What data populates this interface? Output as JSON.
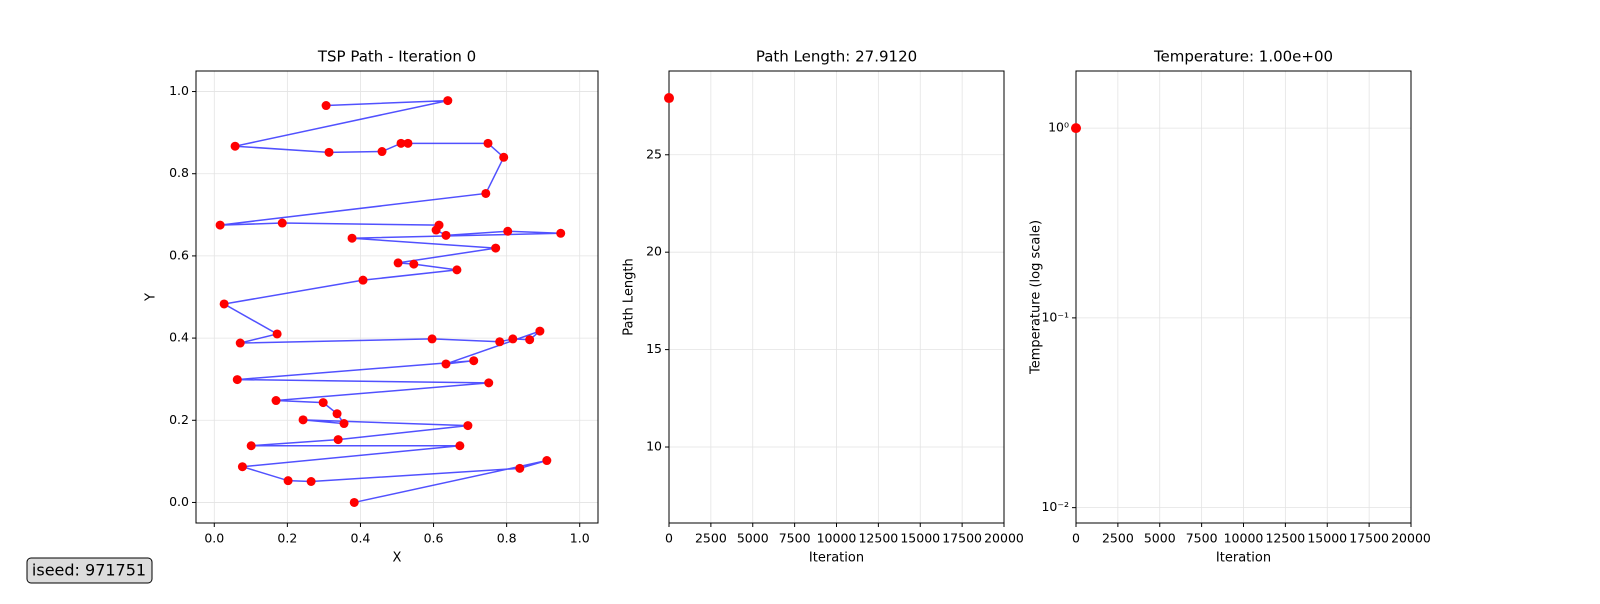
{
  "chart_data": [
    {
      "type": "scatter",
      "title": "TSP Path - Iteration 0",
      "xlabel": "X",
      "ylabel": "Y",
      "x": [
        0.306,
        0.639,
        0.057,
        0.314,
        0.459,
        0.511,
        0.53,
        0.749,
        0.792,
        0.743,
        0.016,
        0.186,
        0.615,
        0.607,
        0.634,
        0.803,
        0.948,
        0.377,
        0.77,
        0.503,
        0.546,
        0.664,
        0.407,
        0.027,
        0.172,
        0.071,
        0.596,
        0.781,
        0.817,
        0.863,
        0.891,
        0.634,
        0.71,
        0.063,
        0.751,
        0.169,
        0.298,
        0.336,
        0.355,
        0.243,
        0.694,
        0.339,
        0.101,
        0.672,
        0.077,
        0.202,
        0.265,
        0.836,
        0.91,
        0.383
      ],
      "y": [
        0.966,
        0.978,
        0.867,
        0.852,
        0.854,
        0.874,
        0.874,
        0.874,
        0.84,
        0.752,
        0.675,
        0.68,
        0.675,
        0.663,
        0.65,
        0.66,
        0.655,
        0.643,
        0.619,
        0.583,
        0.58,
        0.566,
        0.541,
        0.483,
        0.41,
        0.388,
        0.398,
        0.391,
        0.398,
        0.396,
        0.417,
        0.337,
        0.345,
        0.299,
        0.291,
        0.248,
        0.243,
        0.216,
        0.192,
        0.201,
        0.187,
        0.153,
        0.138,
        0.138,
        0.087,
        0.053,
        0.051,
        0.083,
        0.102,
        0.0
      ],
      "line_color": "#3333ff",
      "marker_color": "#ff0000",
      "xlim": [
        -0.05,
        1.05
      ],
      "ylim": [
        -0.05,
        1.05
      ],
      "xticks": [
        {
          "value": 0,
          "label": "0.0"
        },
        0.2,
        0.4,
        0.6,
        0.8,
        {
          "value": 1,
          "label": "1.0"
        }
      ],
      "yticks": [
        {
          "value": 0,
          "label": "0.0"
        },
        0.2,
        0.4,
        0.6,
        0.8,
        {
          "value": 1,
          "label": "1.0"
        }
      ],
      "grid": true
    },
    {
      "type": "line",
      "title": "Path Length: 27.9120",
      "xlabel": "Iteration",
      "ylabel": "Path Length",
      "x": [
        0
      ],
      "values": [
        27.912
      ],
      "color": "#ff0000",
      "xlim": [
        0,
        20000
      ],
      "ylim": [
        6.1,
        29.3
      ],
      "xticks": [
        0,
        2500,
        5000,
        7500,
        10000,
        12500,
        15000,
        17500,
        20000
      ],
      "yticks": [
        10,
        15,
        20,
        25
      ],
      "grid": true
    },
    {
      "type": "line",
      "title": "Temperature: 1.00e+00",
      "xlabel": "Iteration",
      "ylabel": "Temperature (log scale)",
      "x": [
        0
      ],
      "values": [
        1.0
      ],
      "color": "#ff0000",
      "log_y": true,
      "xlim": [
        0,
        20000
      ],
      "ylim": [
        0.0083,
        2.0
      ],
      "xticks": [
        0,
        2500,
        5000,
        7500,
        10000,
        12500,
        15000,
        17500,
        20000
      ],
      "yticks": [
        {
          "value": 1,
          "label": "10⁰"
        },
        {
          "value": 0.1,
          "label": "10⁻¹"
        },
        {
          "value": 0.01,
          "label": "10⁻²"
        }
      ],
      "grid": true
    }
  ],
  "footer_label": "iseed: 971751"
}
